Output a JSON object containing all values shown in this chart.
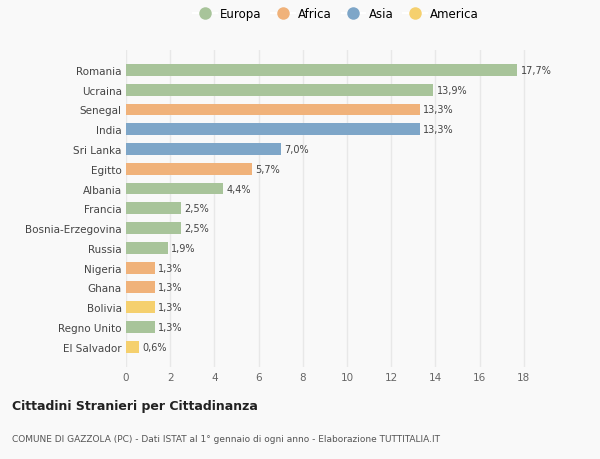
{
  "countries": [
    "El Salvador",
    "Regno Unito",
    "Bolivia",
    "Ghana",
    "Nigeria",
    "Russia",
    "Bosnia-Erzegovina",
    "Francia",
    "Albania",
    "Egitto",
    "Sri Lanka",
    "India",
    "Senegal",
    "Ucraina",
    "Romania"
  ],
  "values": [
    0.6,
    1.3,
    1.3,
    1.3,
    1.3,
    1.9,
    2.5,
    2.5,
    4.4,
    5.7,
    7.0,
    13.3,
    13.3,
    13.9,
    17.7
  ],
  "labels": [
    "0,6%",
    "1,3%",
    "1,3%",
    "1,3%",
    "1,3%",
    "1,9%",
    "2,5%",
    "2,5%",
    "4,4%",
    "5,7%",
    "7,0%",
    "13,3%",
    "13,3%",
    "13,9%",
    "17,7%"
  ],
  "continents": [
    "America",
    "Europa",
    "America",
    "Africa",
    "Africa",
    "Europa",
    "Europa",
    "Europa",
    "Europa",
    "Africa",
    "Asia",
    "Asia",
    "Africa",
    "Europa",
    "Europa"
  ],
  "continent_colors": {
    "Europa": "#a8c49a",
    "Africa": "#f0b27a",
    "Asia": "#7ea6c8",
    "America": "#f5d06e"
  },
  "legend_order": [
    "Europa",
    "Africa",
    "Asia",
    "America"
  ],
  "title": "Cittadini Stranieri per Cittadinanza",
  "subtitle": "COMUNE DI GAZZOLA (PC) - Dati ISTAT al 1° gennaio di ogni anno - Elaborazione TUTTITALIA.IT",
  "xlim": [
    0,
    19
  ],
  "xticks": [
    0,
    2,
    4,
    6,
    8,
    10,
    12,
    14,
    16,
    18
  ],
  "background_color": "#f9f9f9",
  "grid_color": "#e8e8e8",
  "bar_height": 0.6
}
